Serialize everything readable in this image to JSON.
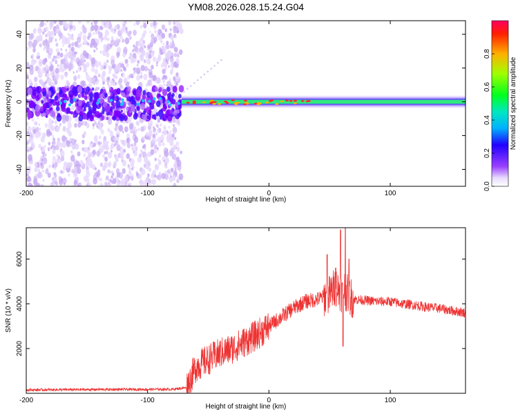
{
  "figure_title": "YM08.2026.028.15.24.G04",
  "chart_data": [
    {
      "type": "heatmap",
      "name": "spectrogram",
      "xlabel": "Height of straight line (km)",
      "ylabel": "Frequency (Hz)",
      "xlim": [
        -200,
        162
      ],
      "ylim": [
        -50,
        48
      ],
      "xticks": [
        -200,
        -100,
        0,
        100
      ],
      "yticks": [
        -40,
        -20,
        0,
        20,
        40
      ],
      "colorbar": {
        "label": "Normalized spectral amplitude",
        "range": [
          0.0,
          1.0
        ],
        "ticks": [
          0.0,
          0.2,
          0.4,
          0.6,
          0.8
        ],
        "tick_labels": [
          "0.0",
          "0.2",
          "0.4",
          "0.6",
          "0.8"
        ],
        "colormap": [
          "#ffffff",
          "#d9c8f5",
          "#7f00ff",
          "#0000ff",
          "#00c8ff",
          "#00e0a0",
          "#00ff00",
          "#c8ff00",
          "#ffb000",
          "#ff0000"
        ]
      },
      "regions": [
        {
          "x_range": [
            -200,
            -72
          ],
          "description_values": {
            "scatter_freq_range": [
              -50,
              48
            ],
            "core_band": [
              -10,
              8
            ],
            "peak_amp": 0.3
          }
        },
        {
          "x_range": [
            -72,
            162
          ],
          "description_values": {
            "center_freq": 0,
            "band_halfwidth": 4,
            "peak_amp": 0.9
          }
        }
      ]
    },
    {
      "type": "line",
      "name": "snr",
      "xlabel": "Height of straight line (km)",
      "ylabel": "SNR (10 * v/v)",
      "xlim": [
        -200,
        162
      ],
      "ylim": [
        0,
        7400
      ],
      "xticks": [
        -200,
        -100,
        0,
        100
      ],
      "yticks": [
        2000,
        4000,
        6000
      ],
      "color": "#ee3333",
      "series": [
        {
          "name": "SNR",
          "x": [
            -200,
            -140,
            -80,
            -68,
            -60,
            -50,
            -40,
            -30,
            -20,
            -10,
            0,
            10,
            20,
            30,
            40,
            45,
            50,
            55,
            58,
            60,
            62,
            65,
            70,
            80,
            90,
            100,
            110,
            120,
            130,
            140,
            150,
            162
          ],
          "values": [
            150,
            170,
            180,
            250,
            1200,
            1500,
            1800,
            2000,
            2300,
            2600,
            3000,
            3400,
            3800,
            4100,
            4200,
            4300,
            4400,
            4800,
            4600,
            4500,
            4700,
            4400,
            4200,
            4150,
            4100,
            4100,
            4000,
            3950,
            3850,
            3800,
            3700,
            3600
          ]
        }
      ],
      "spikes": [
        {
          "x": 48,
          "value": 6200
        },
        {
          "x": 55,
          "value": 5600
        },
        {
          "x": 59,
          "value": 7300
        },
        {
          "x": 61,
          "value": 2100
        },
        {
          "x": 63,
          "value": 7400
        },
        {
          "x": 66,
          "value": 6000
        }
      ]
    }
  ]
}
